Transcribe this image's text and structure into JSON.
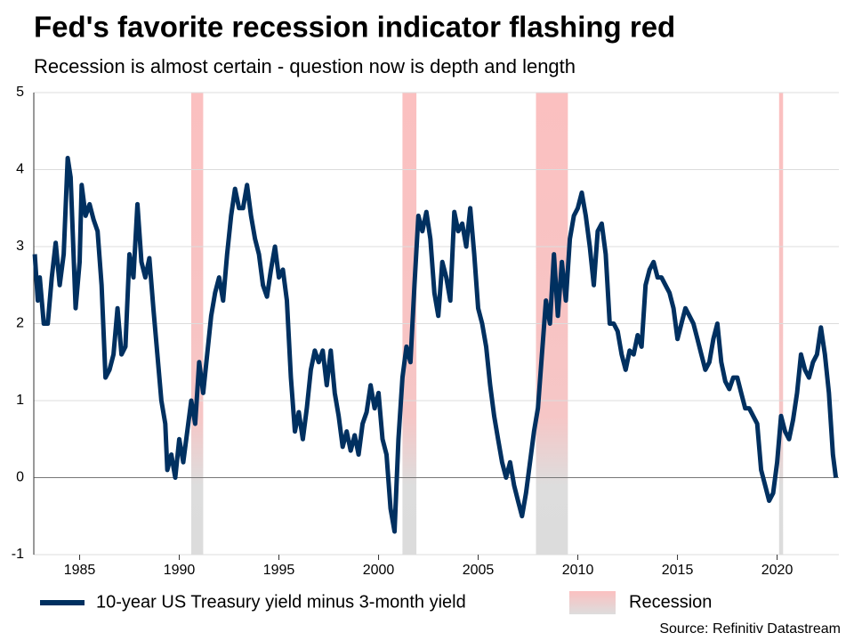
{
  "chart_data": {
    "type": "line",
    "title": "Fed's favorite recession indicator flashing red",
    "subtitle": "Recession is almost certain - question now is depth and length",
    "source": "Source: Refinitiv Datastream",
    "x": [
      1982.75,
      1982.9,
      1983.0,
      1983.2,
      1983.4,
      1983.6,
      1983.8,
      1984.0,
      1984.2,
      1984.4,
      1984.55,
      1984.8,
      1985.0,
      1985.1,
      1985.3,
      1985.5,
      1985.7,
      1985.9,
      1986.1,
      1986.3,
      1986.5,
      1986.7,
      1986.9,
      1987.1,
      1987.3,
      1987.5,
      1987.7,
      1987.9,
      1988.1,
      1988.3,
      1988.5,
      1988.7,
      1988.9,
      1989.1,
      1989.3,
      1989.4,
      1989.6,
      1989.8,
      1990.0,
      1990.2,
      1990.4,
      1990.6,
      1990.8,
      1991.0,
      1991.2,
      1991.4,
      1991.6,
      1991.8,
      1992.0,
      1992.2,
      1992.4,
      1992.6,
      1992.8,
      1993.0,
      1993.2,
      1993.4,
      1993.6,
      1993.8,
      1994.0,
      1994.2,
      1994.4,
      1994.6,
      1994.8,
      1995.0,
      1995.2,
      1995.4,
      1995.6,
      1995.8,
      1996.0,
      1996.2,
      1996.4,
      1996.6,
      1996.8,
      1997.0,
      1997.2,
      1997.4,
      1997.6,
      1997.8,
      1998.0,
      1998.2,
      1998.4,
      1998.6,
      1998.8,
      1999.0,
      1999.2,
      1999.4,
      1999.6,
      1999.8,
      2000.0,
      2000.2,
      2000.4,
      2000.6,
      2000.8,
      2001.0,
      2001.2,
      2001.4,
      2001.6,
      2001.8,
      2002.0,
      2002.2,
      2002.4,
      2002.6,
      2002.8,
      2003.0,
      2003.2,
      2003.4,
      2003.6,
      2003.8,
      2004.0,
      2004.2,
      2004.4,
      2004.6,
      2004.8,
      2005.0,
      2005.2,
      2005.4,
      2005.6,
      2005.8,
      2006.0,
      2006.2,
      2006.4,
      2006.6,
      2006.8,
      2007.0,
      2007.2,
      2007.4,
      2007.6,
      2007.8,
      2008.0,
      2008.2,
      2008.4,
      2008.6,
      2008.8,
      2009.0,
      2009.2,
      2009.4,
      2009.6,
      2009.8,
      2010.0,
      2010.2,
      2010.4,
      2010.6,
      2010.8,
      2011.0,
      2011.2,
      2011.4,
      2011.6,
      2011.8,
      2012.0,
      2012.2,
      2012.4,
      2012.6,
      2012.8,
      2013.0,
      2013.2,
      2013.4,
      2013.6,
      2013.8,
      2014.0,
      2014.2,
      2014.4,
      2014.6,
      2014.8,
      2015.0,
      2015.2,
      2015.4,
      2015.6,
      2015.8,
      2016.0,
      2016.2,
      2016.4,
      2016.6,
      2016.8,
      2017.0,
      2017.2,
      2017.4,
      2017.6,
      2017.8,
      2018.0,
      2018.2,
      2018.4,
      2018.6,
      2018.8,
      2019.0,
      2019.2,
      2019.4,
      2019.6,
      2019.8,
      2020.0,
      2020.2,
      2020.4,
      2020.6,
      2020.8,
      2021.0,
      2021.2,
      2021.4,
      2021.6,
      2021.8,
      2022.0,
      2022.2,
      2022.4,
      2022.6,
      2022.8,
      2022.95
    ],
    "series": [
      {
        "name": "10-year US Treasury yield minus 3-month yield",
        "color": "#003060",
        "values": [
          2.9,
          2.3,
          2.6,
          2.0,
          2.0,
          2.6,
          3.05,
          2.5,
          2.9,
          4.15,
          3.9,
          2.2,
          2.8,
          3.8,
          3.4,
          3.55,
          3.35,
          3.2,
          2.5,
          1.3,
          1.4,
          1.6,
          2.2,
          1.6,
          1.7,
          2.9,
          2.6,
          3.55,
          2.8,
          2.6,
          2.85,
          2.2,
          1.6,
          1.0,
          0.7,
          0.1,
          0.3,
          0.0,
          0.5,
          0.2,
          0.6,
          1.0,
          0.7,
          1.5,
          1.1,
          1.6,
          2.1,
          2.4,
          2.6,
          2.3,
          2.9,
          3.4,
          3.75,
          3.5,
          3.5,
          3.8,
          3.4,
          3.1,
          2.9,
          2.5,
          2.35,
          2.7,
          3.0,
          2.6,
          2.7,
          2.3,
          1.3,
          0.6,
          0.85,
          0.5,
          0.9,
          1.4,
          1.65,
          1.5,
          1.65,
          1.2,
          1.65,
          1.1,
          0.8,
          0.4,
          0.6,
          0.35,
          0.55,
          0.3,
          0.7,
          0.85,
          1.2,
          0.9,
          1.1,
          0.5,
          0.3,
          -0.4,
          -0.7,
          0.5,
          1.3,
          1.7,
          1.5,
          2.5,
          3.4,
          3.2,
          3.45,
          3.1,
          2.4,
          2.1,
          2.8,
          2.6,
          2.3,
          3.45,
          3.2,
          3.3,
          3.0,
          3.5,
          2.9,
          2.2,
          2.0,
          1.7,
          1.2,
          0.8,
          0.5,
          0.2,
          0.0,
          0.2,
          -0.1,
          -0.3,
          -0.5,
          -0.2,
          0.2,
          0.6,
          0.9,
          1.6,
          2.3,
          2.0,
          2.9,
          2.1,
          2.8,
          2.3,
          3.1,
          3.4,
          3.5,
          3.7,
          3.4,
          3.0,
          2.5,
          3.2,
          3.3,
          2.9,
          2.0,
          2.0,
          1.9,
          1.6,
          1.4,
          1.65,
          1.6,
          1.85,
          1.7,
          2.5,
          2.7,
          2.8,
          2.6,
          2.6,
          2.5,
          2.4,
          2.2,
          1.8,
          2.0,
          2.2,
          2.1,
          2.0,
          1.8,
          1.6,
          1.4,
          1.5,
          1.8,
          2.0,
          1.5,
          1.25,
          1.15,
          1.3,
          1.3,
          1.1,
          0.9,
          0.9,
          0.8,
          0.7,
          0.1,
          -0.1,
          -0.3,
          -0.2,
          0.2,
          0.8,
          0.6,
          0.5,
          0.75,
          1.1,
          1.6,
          1.4,
          1.3,
          1.5,
          1.6,
          1.95,
          1.6,
          1.1,
          0.3,
          0.0
        ]
      }
    ],
    "recession_label": "Recession",
    "recessions": [
      {
        "start": 1990.6,
        "end": 1991.2
      },
      {
        "start": 2001.2,
        "end": 2001.9
      },
      {
        "start": 2007.9,
        "end": 2009.5
      },
      {
        "start": 2020.1,
        "end": 2020.3
      }
    ],
    "xlim": [
      1982.7,
      2023.1
    ],
    "xticks": [
      1985,
      1990,
      1995,
      2000,
      2005,
      2010,
      2015,
      2020
    ],
    "ylim": [
      -1,
      5
    ],
    "yticks": [
      -1,
      0,
      1,
      2,
      3,
      4,
      5
    ],
    "grid": true
  }
}
